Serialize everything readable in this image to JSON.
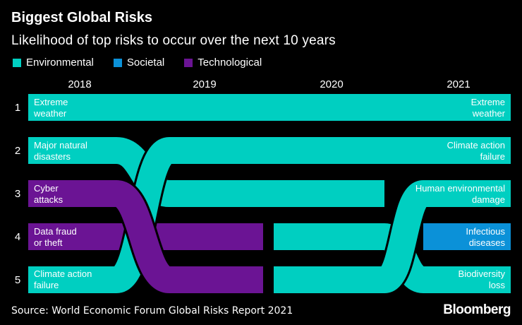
{
  "title": "Biggest Global Risks",
  "subtitle": "Likelihood of top risks to occur over the next 10 years",
  "legend": [
    {
      "label": "Environmental",
      "color": "#00cfc1"
    },
    {
      "label": "Societal",
      "color": "#0b91d8"
    },
    {
      "label": "Technological",
      "color": "#6b1494"
    }
  ],
  "years": [
    "2018",
    "2019",
    "2020",
    "2021"
  ],
  "ranks": [
    "1",
    "2",
    "3",
    "4",
    "5"
  ],
  "series": [
    {
      "name": "Extreme weather",
      "category": "Environmental",
      "ranks": [
        1,
        1,
        1,
        1
      ]
    },
    {
      "name": "Major natural disasters",
      "category": "Environmental",
      "ranks": [
        2,
        3,
        3,
        null
      ]
    },
    {
      "name": "Data fraud or theft",
      "category": "Technological",
      "ranks": [
        4,
        4,
        null,
        null
      ]
    },
    {
      "name": "Biodiversity loss",
      "category": "Environmental",
      "ranks": [
        null,
        null,
        4,
        5
      ]
    },
    {
      "name": "Human environmental damage",
      "category": "Environmental",
      "ranks": [
        null,
        null,
        5,
        3
      ]
    },
    {
      "name": "Climate action failure",
      "category": "Environmental",
      "ranks": [
        5,
        2,
        2,
        2
      ]
    },
    {
      "name": "Cyber attacks",
      "category": "Technological",
      "ranks": [
        3,
        5,
        null,
        null
      ]
    },
    {
      "name": "Infectious diseases",
      "category": "Societal",
      "ranks": [
        null,
        null,
        null,
        4
      ]
    }
  ],
  "left_labels": [
    {
      "line1": "Extreme",
      "line2": "weather"
    },
    {
      "line1": "Major natural",
      "line2": "disasters"
    },
    {
      "line1": "Cyber",
      "line2": "attacks"
    },
    {
      "line1": "Data fraud",
      "line2": "or theft"
    },
    {
      "line1": "Climate action",
      "line2": "failure"
    }
  ],
  "right_labels": [
    {
      "line1": "Extreme",
      "line2": "weather"
    },
    {
      "line1": "Climate action",
      "line2": "failure"
    },
    {
      "line1": "Human environmental",
      "line2": "damage"
    },
    {
      "line1": "Infectious",
      "line2": "diseases"
    },
    {
      "line1": "Biodiversity",
      "line2": "loss"
    }
  ],
  "source": "Source: World Economic Forum Global Risks Report 2021",
  "logo": "Bloomberg"
}
